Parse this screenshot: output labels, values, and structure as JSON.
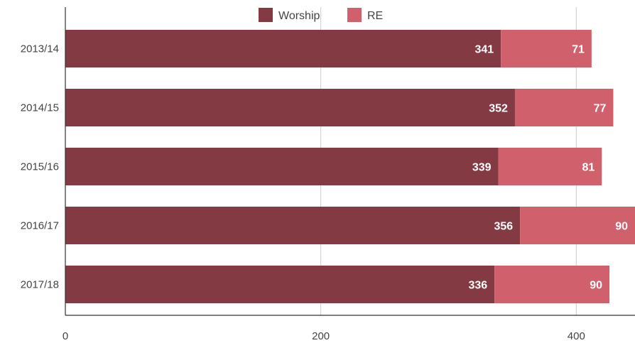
{
  "chart_data": {
    "type": "bar",
    "orientation": "horizontal",
    "stacked": true,
    "categories": [
      "2013/14",
      "2014/15",
      "2015/16",
      "2016/17",
      "2017/18"
    ],
    "series": [
      {
        "name": "Worship",
        "values": [
          341,
          352,
          339,
          356,
          336
        ],
        "color": "#843a43"
      },
      {
        "name": "RE",
        "values": [
          71,
          77,
          81,
          90,
          90
        ],
        "color": "#d0606b"
      }
    ],
    "xlim": [
      0,
      446
    ],
    "xticks": [
      0,
      200,
      400
    ],
    "grid": true,
    "legend_position": "top-center",
    "data_labels": true
  }
}
